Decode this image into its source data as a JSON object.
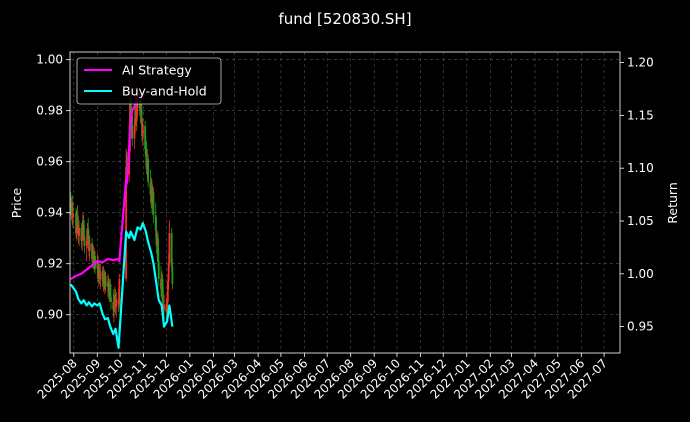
{
  "chart_data": {
    "type": "candlestick-line",
    "title": "fund [520830.SH]",
    "ylabel_left": "Price",
    "ylabel_right": "Return",
    "ylim_left": [
      0.885,
      1.003
    ],
    "ylim_right": [
      0.925,
      1.21
    ],
    "xlim": [
      "2025-07-27",
      "2027-07-22"
    ],
    "grid": true,
    "legend_position": "top-left",
    "yticks_left": [
      0.9,
      0.92,
      0.94,
      0.96,
      0.98,
      1.0
    ],
    "yticks_left_labels": [
      "0.90",
      "0.92",
      "0.94",
      "0.96",
      "0.98",
      "1.00"
    ],
    "yticks_right": [
      0.95,
      1.0,
      1.05,
      1.1,
      1.15,
      1.2
    ],
    "yticks_right_labels": [
      "0.95",
      "1.00",
      "1.05",
      "1.10",
      "1.15",
      "1.20"
    ],
    "xticks": [
      "2025-08-01",
      "2025-09-01",
      "2025-10-01",
      "2025-11-01",
      "2025-12-01",
      "2026-01-01",
      "2026-02-01",
      "2026-03-01",
      "2026-04-01",
      "2026-05-01",
      "2026-06-01",
      "2026-07-01",
      "2026-08-01",
      "2026-09-01",
      "2026-10-01",
      "2026-11-01",
      "2026-12-01",
      "2027-01-01",
      "2027-02-01",
      "2027-03-01",
      "2027-04-01",
      "2027-05-01",
      "2027-06-01",
      "2027-07-01"
    ],
    "xtick_labels": [
      "2025-08",
      "2025-09",
      "2025-10",
      "2025-11",
      "2025-12",
      "2026-01",
      "2026-02",
      "2026-03",
      "2026-04",
      "2026-05",
      "2026-06",
      "2026-07",
      "2026-08",
      "2026-09",
      "2026-10",
      "2026-11",
      "2026-12",
      "2027-01",
      "2027-02",
      "2027-03",
      "2027-04",
      "2027-05",
      "2027-06",
      "2027-07"
    ],
    "candles": [
      {
        "date": "2025-07-28",
        "open": 0.944,
        "high": 0.948,
        "low": 0.939,
        "close": 0.942
      },
      {
        "date": "2025-07-29",
        "open": 0.942,
        "high": 0.946,
        "low": 0.937,
        "close": 0.944
      },
      {
        "date": "2025-07-30",
        "open": 0.944,
        "high": 0.947,
        "low": 0.935,
        "close": 0.938
      },
      {
        "date": "2025-07-31",
        "open": 0.938,
        "high": 0.944,
        "low": 0.934,
        "close": 0.94
      },
      {
        "date": "2025-08-04",
        "open": 0.94,
        "high": 0.942,
        "low": 0.93,
        "close": 0.932
      },
      {
        "date": "2025-08-05",
        "open": 0.932,
        "high": 0.941,
        "low": 0.929,
        "close": 0.938
      },
      {
        "date": "2025-08-06",
        "open": 0.938,
        "high": 0.943,
        "low": 0.933,
        "close": 0.935
      },
      {
        "date": "2025-08-07",
        "open": 0.935,
        "high": 0.939,
        "low": 0.928,
        "close": 0.931
      },
      {
        "date": "2025-08-08",
        "open": 0.931,
        "high": 0.937,
        "low": 0.927,
        "close": 0.934
      },
      {
        "date": "2025-08-11",
        "open": 0.934,
        "high": 0.936,
        "low": 0.926,
        "close": 0.929
      },
      {
        "date": "2025-08-12",
        "open": 0.929,
        "high": 0.935,
        "low": 0.925,
        "close": 0.932
      },
      {
        "date": "2025-08-13",
        "open": 0.932,
        "high": 0.94,
        "low": 0.929,
        "close": 0.937
      },
      {
        "date": "2025-08-14",
        "open": 0.937,
        "high": 0.939,
        "low": 0.929,
        "close": 0.931
      },
      {
        "date": "2025-08-15",
        "open": 0.931,
        "high": 0.935,
        "low": 0.924,
        "close": 0.927
      },
      {
        "date": "2025-08-18",
        "open": 0.927,
        "high": 0.933,
        "low": 0.921,
        "close": 0.929
      },
      {
        "date": "2025-08-19",
        "open": 0.929,
        "high": 0.936,
        "low": 0.926,
        "close": 0.934
      },
      {
        "date": "2025-08-20",
        "open": 0.934,
        "high": 0.938,
        "low": 0.928,
        "close": 0.93
      },
      {
        "date": "2025-08-21",
        "open": 0.93,
        "high": 0.933,
        "low": 0.923,
        "close": 0.925
      },
      {
        "date": "2025-08-22",
        "open": 0.925,
        "high": 0.931,
        "low": 0.921,
        "close": 0.928
      },
      {
        "date": "2025-08-25",
        "open": 0.928,
        "high": 0.93,
        "low": 0.92,
        "close": 0.922
      },
      {
        "date": "2025-08-26",
        "open": 0.922,
        "high": 0.928,
        "low": 0.918,
        "close": 0.925
      },
      {
        "date": "2025-08-27",
        "open": 0.925,
        "high": 0.927,
        "low": 0.918,
        "close": 0.92
      },
      {
        "date": "2025-08-28",
        "open": 0.92,
        "high": 0.926,
        "low": 0.917,
        "close": 0.923
      },
      {
        "date": "2025-08-29",
        "open": 0.923,
        "high": 0.925,
        "low": 0.916,
        "close": 0.918
      },
      {
        "date": "2025-09-01",
        "open": 0.918,
        "high": 0.924,
        "low": 0.914,
        "close": 0.921
      },
      {
        "date": "2025-09-02",
        "open": 0.921,
        "high": 0.923,
        "low": 0.913,
        "close": 0.915
      },
      {
        "date": "2025-09-03",
        "open": 0.915,
        "high": 0.921,
        "low": 0.911,
        "close": 0.918
      },
      {
        "date": "2025-09-04",
        "open": 0.918,
        "high": 0.92,
        "low": 0.912,
        "close": 0.914
      },
      {
        "date": "2025-09-05",
        "open": 0.914,
        "high": 0.92,
        "low": 0.91,
        "close": 0.917
      },
      {
        "date": "2025-09-08",
        "open": 0.917,
        "high": 0.919,
        "low": 0.911,
        "close": 0.913
      },
      {
        "date": "2025-09-09",
        "open": 0.913,
        "high": 0.919,
        "low": 0.909,
        "close": 0.916
      },
      {
        "date": "2025-09-10",
        "open": 0.916,
        "high": 0.918,
        "low": 0.91,
        "close": 0.912
      },
      {
        "date": "2025-09-11",
        "open": 0.912,
        "high": 0.917,
        "low": 0.908,
        "close": 0.915
      },
      {
        "date": "2025-09-12",
        "open": 0.915,
        "high": 0.917,
        "low": 0.909,
        "close": 0.911
      },
      {
        "date": "2025-09-15",
        "open": 0.911,
        "high": 0.916,
        "low": 0.907,
        "close": 0.913
      },
      {
        "date": "2025-09-16",
        "open": 0.913,
        "high": 0.915,
        "low": 0.906,
        "close": 0.909
      },
      {
        "date": "2025-09-17",
        "open": 0.909,
        "high": 0.914,
        "low": 0.905,
        "close": 0.912
      },
      {
        "date": "2025-09-18",
        "open": 0.912,
        "high": 0.914,
        "low": 0.905,
        "close": 0.907
      },
      {
        "date": "2025-09-19",
        "open": 0.907,
        "high": 0.912,
        "low": 0.902,
        "close": 0.905
      },
      {
        "date": "2025-09-22",
        "open": 0.905,
        "high": 0.91,
        "low": 0.899,
        "close": 0.902
      },
      {
        "date": "2025-09-23",
        "open": 0.902,
        "high": 0.908,
        "low": 0.897,
        "close": 0.905
      },
      {
        "date": "2025-09-24",
        "open": 0.905,
        "high": 0.911,
        "low": 0.901,
        "close": 0.908
      },
      {
        "date": "2025-09-25",
        "open": 0.908,
        "high": 0.91,
        "low": 0.9,
        "close": 0.903
      },
      {
        "date": "2025-09-26",
        "open": 0.903,
        "high": 0.909,
        "low": 0.899,
        "close": 0.906
      },
      {
        "date": "2025-09-29",
        "open": 0.906,
        "high": 0.91,
        "low": 0.901,
        "close": 0.904
      },
      {
        "date": "2025-09-30",
        "open": 0.904,
        "high": 0.916,
        "low": 0.902,
        "close": 0.914
      },
      {
        "date": "2025-10-09",
        "open": 0.914,
        "high": 0.965,
        "low": 0.913,
        "close": 0.958
      },
      {
        "date": "2025-10-10",
        "open": 0.958,
        "high": 0.964,
        "low": 0.95,
        "close": 0.955
      },
      {
        "date": "2025-10-13",
        "open": 0.955,
        "high": 0.968,
        "low": 0.952,
        "close": 0.964
      },
      {
        "date": "2025-10-14",
        "open": 0.964,
        "high": 0.992,
        "low": 0.961,
        "close": 0.985
      },
      {
        "date": "2025-10-15",
        "open": 0.985,
        "high": 0.988,
        "low": 0.972,
        "close": 0.975
      },
      {
        "date": "2025-10-16",
        "open": 0.975,
        "high": 0.982,
        "low": 0.969,
        "close": 0.978
      },
      {
        "date": "2025-10-17",
        "open": 0.978,
        "high": 0.98,
        "low": 0.966,
        "close": 0.969
      },
      {
        "date": "2025-10-20",
        "open": 0.969,
        "high": 0.977,
        "low": 0.965,
        "close": 0.974
      },
      {
        "date": "2025-10-21",
        "open": 0.974,
        "high": 0.986,
        "low": 0.971,
        "close": 0.983
      },
      {
        "date": "2025-10-22",
        "open": 0.983,
        "high": 0.985,
        "low": 0.974,
        "close": 0.976
      },
      {
        "date": "2025-10-23",
        "open": 0.976,
        "high": 0.984,
        "low": 0.972,
        "close": 0.981
      },
      {
        "date": "2025-10-24",
        "open": 0.981,
        "high": 0.99,
        "low": 0.978,
        "close": 0.987
      },
      {
        "date": "2025-10-27",
        "open": 0.987,
        "high": 0.989,
        "low": 0.978,
        "close": 0.98
      },
      {
        "date": "2025-10-28",
        "open": 0.98,
        "high": 0.986,
        "low": 0.975,
        "close": 0.983
      },
      {
        "date": "2025-10-29",
        "open": 0.983,
        "high": 0.985,
        "low": 0.974,
        "close": 0.977
      },
      {
        "date": "2025-10-30",
        "open": 0.977,
        "high": 0.98,
        "low": 0.968,
        "close": 0.97
      },
      {
        "date": "2025-10-31",
        "open": 0.97,
        "high": 0.977,
        "low": 0.966,
        "close": 0.974
      },
      {
        "date": "2025-11-03",
        "open": 0.974,
        "high": 0.976,
        "low": 0.963,
        "close": 0.965
      },
      {
        "date": "2025-11-04",
        "open": 0.965,
        "high": 0.97,
        "low": 0.958,
        "close": 0.962
      },
      {
        "date": "2025-11-05",
        "open": 0.962,
        "high": 0.968,
        "low": 0.955,
        "close": 0.957
      },
      {
        "date": "2025-11-06",
        "open": 0.957,
        "high": 0.965,
        "low": 0.953,
        "close": 0.961
      },
      {
        "date": "2025-11-07",
        "open": 0.961,
        "high": 0.963,
        "low": 0.95,
        "close": 0.952
      },
      {
        "date": "2025-11-10",
        "open": 0.952,
        "high": 0.957,
        "low": 0.944,
        "close": 0.947
      },
      {
        "date": "2025-11-11",
        "open": 0.947,
        "high": 0.954,
        "low": 0.942,
        "close": 0.95
      },
      {
        "date": "2025-11-12",
        "open": 0.95,
        "high": 0.953,
        "low": 0.94,
        "close": 0.943
      },
      {
        "date": "2025-11-13",
        "open": 0.943,
        "high": 0.951,
        "low": 0.939,
        "close": 0.948
      },
      {
        "date": "2025-11-14",
        "open": 0.948,
        "high": 0.95,
        "low": 0.936,
        "close": 0.939
      },
      {
        "date": "2025-11-17",
        "open": 0.939,
        "high": 0.944,
        "low": 0.93,
        "close": 0.933
      },
      {
        "date": "2025-11-18",
        "open": 0.933,
        "high": 0.938,
        "low": 0.924,
        "close": 0.927
      },
      {
        "date": "2025-11-19",
        "open": 0.927,
        "high": 0.933,
        "low": 0.921,
        "close": 0.93
      },
      {
        "date": "2025-11-20",
        "open": 0.93,
        "high": 0.932,
        "low": 0.918,
        "close": 0.921
      },
      {
        "date": "2025-11-21",
        "open": 0.921,
        "high": 0.926,
        "low": 0.911,
        "close": 0.914
      },
      {
        "date": "2025-11-24",
        "open": 0.914,
        "high": 0.919,
        "low": 0.907,
        "close": 0.91
      },
      {
        "date": "2025-11-25",
        "open": 0.91,
        "high": 0.917,
        "low": 0.906,
        "close": 0.914
      },
      {
        "date": "2025-11-26",
        "open": 0.914,
        "high": 0.916,
        "low": 0.902,
        "close": 0.905
      },
      {
        "date": "2025-11-27",
        "open": 0.905,
        "high": 0.911,
        "low": 0.899,
        "close": 0.902
      },
      {
        "date": "2025-11-28",
        "open": 0.902,
        "high": 0.908,
        "low": 0.897,
        "close": 0.904
      },
      {
        "date": "2025-12-01",
        "open": 0.904,
        "high": 0.906,
        "low": 0.898,
        "close": 0.901
      },
      {
        "date": "2025-12-02",
        "open": 0.901,
        "high": 0.908,
        "low": 0.899,
        "close": 0.905
      },
      {
        "date": "2025-12-03",
        "open": 0.905,
        "high": 0.916,
        "low": 0.902,
        "close": 0.913
      },
      {
        "date": "2025-12-04",
        "open": 0.913,
        "high": 0.924,
        "low": 0.91,
        "close": 0.92
      },
      {
        "date": "2025-12-05",
        "open": 0.92,
        "high": 0.937,
        "low": 0.917,
        "close": 0.932
      },
      {
        "date": "2025-12-08",
        "open": 0.932,
        "high": 0.934,
        "low": 0.917,
        "close": 0.919
      },
      {
        "date": "2025-12-09",
        "open": 0.919,
        "high": 0.922,
        "low": 0.91,
        "close": 0.912
      }
    ],
    "series": [
      {
        "name": "AI Strategy",
        "color": "#ff00ff",
        "axis": "right",
        "dates": [
          "2025-07-28",
          "2025-08-04",
          "2025-08-11",
          "2025-08-18",
          "2025-08-25",
          "2025-09-01",
          "2025-09-08",
          "2025-09-15",
          "2025-09-22",
          "2025-09-29",
          "2025-09-30",
          "2025-10-09",
          "2025-10-10",
          "2025-10-13",
          "2025-10-14",
          "2025-10-17",
          "2025-10-21",
          "2025-10-24",
          "2025-10-28",
          "2025-11-03"
        ],
        "values": [
          0.995,
          0.998,
          1.0,
          1.004,
          1.008,
          1.012,
          1.011,
          1.014,
          1.013,
          1.014,
          1.012,
          1.09,
          1.086,
          1.12,
          1.14,
          1.155,
          1.16,
          1.165,
          1.168,
          1.17
        ]
      },
      {
        "name": "Buy-and-Hold",
        "color": "#00ffff",
        "axis": "right",
        "dates": [
          "2025-07-28",
          "2025-07-31",
          "2025-08-04",
          "2025-08-07",
          "2025-08-11",
          "2025-08-14",
          "2025-08-18",
          "2025-08-21",
          "2025-08-25",
          "2025-08-28",
          "2025-09-01",
          "2025-09-04",
          "2025-09-08",
          "2025-09-11",
          "2025-09-15",
          "2025-09-18",
          "2025-09-22",
          "2025-09-25",
          "2025-09-29",
          "2025-10-09",
          "2025-10-13",
          "2025-10-15",
          "2025-10-20",
          "2025-10-24",
          "2025-10-28",
          "2025-10-31",
          "2025-11-04",
          "2025-11-07",
          "2025-11-11",
          "2025-11-14",
          "2025-11-18",
          "2025-11-21",
          "2025-11-25",
          "2025-11-28",
          "2025-12-02",
          "2025-12-05",
          "2025-12-09"
        ],
        "values": [
          0.99,
          0.987,
          0.983,
          0.976,
          0.972,
          0.975,
          0.97,
          0.973,
          0.969,
          0.972,
          0.97,
          0.972,
          0.962,
          0.957,
          0.958,
          0.95,
          0.943,
          0.948,
          0.93,
          1.04,
          1.034,
          1.04,
          1.032,
          1.044,
          1.042,
          1.048,
          1.04,
          1.03,
          1.02,
          1.01,
          0.99,
          0.975,
          0.97,
          0.95,
          0.955,
          0.97,
          0.95
        ]
      }
    ]
  }
}
